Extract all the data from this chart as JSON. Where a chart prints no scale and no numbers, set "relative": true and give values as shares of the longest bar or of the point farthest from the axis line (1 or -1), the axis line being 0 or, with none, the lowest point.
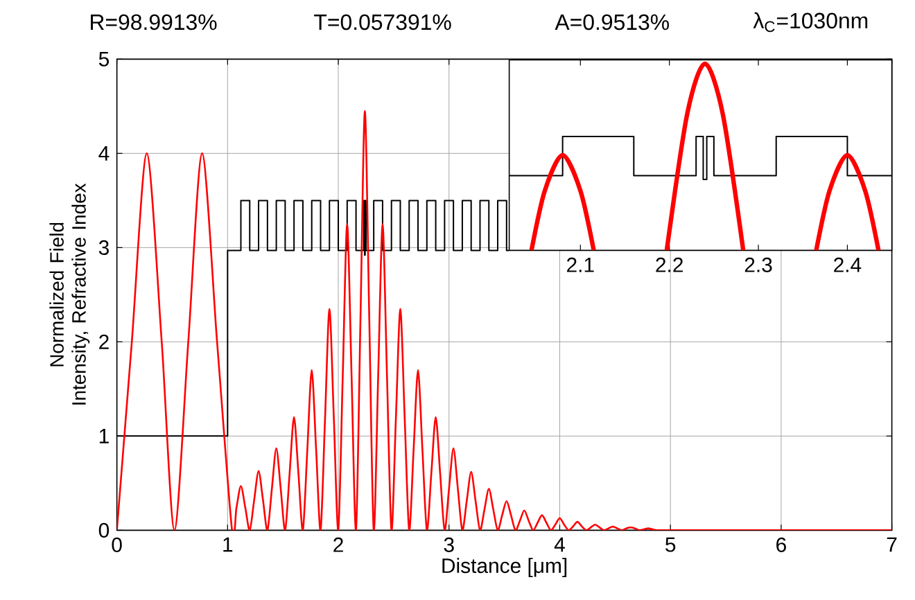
{
  "chart_data": [
    {
      "type": "line",
      "annotations": [
        "R=98.9913%",
        "T=0.057391%",
        "A=0.9513%",
        "λ$_{C}$=1030nm"
      ],
      "xlabel": "Distance [μm]",
      "ylabel": "Normalized Field Intensity, Refractive Index",
      "xlim": [
        0,
        7
      ],
      "ylim": [
        0,
        5
      ],
      "xticks": [
        0,
        1,
        2,
        3,
        4,
        5,
        6,
        7
      ],
      "yticks": [
        0,
        1,
        2,
        3,
        4,
        5
      ],
      "grid": true,
      "series": [
        {
          "type": "step",
          "color": "#000000",
          "x": [
            0,
            1.0,
            1.12,
            1.2,
            1.28,
            1.36,
            1.44,
            1.52,
            1.6,
            1.68,
            1.76,
            1.84,
            1.92,
            2.0,
            2.08,
            2.16,
            2.23,
            2.238,
            2.242,
            2.25,
            2.32,
            2.4,
            2.48,
            2.56,
            2.64,
            2.72,
            2.8,
            2.88,
            2.96,
            3.04,
            3.12,
            3.2,
            3.28,
            3.36,
            3.44,
            3.52,
            3.54
          ],
          "values": [
            1,
            2.97,
            3.5,
            2.97,
            3.5,
            2.97,
            3.5,
            2.97,
            3.5,
            2.97,
            3.5,
            2.97,
            3.5,
            2.97,
            3.5,
            2.97,
            3.5,
            2.92,
            3.5,
            2.97,
            3.5,
            2.97,
            3.5,
            2.97,
            3.5,
            2.97,
            3.5,
            2.97,
            3.5,
            2.97,
            3.5,
            2.97,
            3.5,
            2.97,
            3.5,
            2.97,
            2.97
          ]
        },
        {
          "color": "#ff0000",
          "x": [
            0,
            0.135,
            0.27,
            0.405,
            0.52,
            0.645,
            0.77,
            0.905,
            1.04,
            1.08,
            1.12,
            1.16,
            1.2,
            1.24,
            1.28,
            1.32,
            1.36,
            1.4,
            1.44,
            1.48,
            1.52,
            1.56,
            1.6,
            1.64,
            1.68,
            1.72,
            1.76,
            1.8,
            1.84,
            1.88,
            1.92,
            1.96,
            2.0,
            2.04,
            2.08,
            2.12,
            2.16,
            2.2,
            2.24,
            2.28,
            2.32,
            2.36,
            2.4,
            2.44,
            2.48,
            2.52,
            2.56,
            2.6,
            2.64,
            2.68,
            2.72,
            2.76,
            2.8,
            2.84,
            2.88,
            2.92,
            2.96,
            3.0,
            3.04,
            3.08,
            3.12,
            3.16,
            3.2,
            3.24,
            3.28,
            3.32,
            3.36,
            3.4,
            3.44,
            3.48,
            3.52,
            3.56,
            3.6,
            3.64,
            3.68,
            3.72,
            3.76,
            3.8,
            3.84,
            3.88,
            3.92,
            3.96,
            4.0,
            4.04,
            4.08,
            4.12,
            4.16,
            4.2,
            4.24,
            4.28,
            4.32,
            4.36,
            4.4,
            4.44,
            4.48,
            4.52,
            4.56,
            4.6,
            4.64,
            4.68,
            4.72,
            4.76,
            4.8,
            4.84,
            4.88,
            5.0,
            7.0
          ],
          "values": [
            0,
            2,
            4,
            2,
            0,
            2,
            4,
            2,
            0,
            0.24,
            0.47,
            0.24,
            0,
            0.32,
            0.63,
            0.32,
            0,
            0.44,
            0.87,
            0.44,
            0,
            0.6,
            1.2,
            0.6,
            0,
            0.85,
            1.7,
            0.85,
            0,
            1.18,
            2.35,
            1.18,
            0,
            1.63,
            3.25,
            1.63,
            0,
            2.23,
            4.45,
            2.23,
            0,
            1.63,
            3.25,
            1.63,
            0,
            1.18,
            2.35,
            1.18,
            0,
            0.85,
            1.7,
            0.85,
            0,
            0.6,
            1.2,
            0.6,
            0,
            0.44,
            0.87,
            0.44,
            0,
            0.31,
            0.62,
            0.31,
            0,
            0.22,
            0.44,
            0.22,
            0,
            0.16,
            0.31,
            0.16,
            0,
            0.1,
            0.21,
            0.1,
            0,
            0.08,
            0.16,
            0.08,
            0,
            0.06,
            0.13,
            0.06,
            0,
            0.04,
            0.09,
            0.04,
            0,
            0.03,
            0.06,
            0.03,
            0,
            0.02,
            0.04,
            0.02,
            0,
            0.02,
            0.03,
            0.02,
            0,
            0.01,
            0.02,
            0.01,
            0,
            0,
            0
          ]
        }
      ]
    },
    {
      "type": "line",
      "relative": true,
      "xlim": [
        2.02,
        2.45
      ],
      "xticks": [
        2.1,
        2.2,
        2.3,
        2.4
      ],
      "tick_labels": "x",
      "series": [
        {
          "type": "step",
          "color": "#000000",
          "x": [
            2.02,
            2.08,
            2.16,
            2.23,
            2.238,
            2.242,
            2.25,
            2.32,
            2.4,
            2.45
          ],
          "values": [
            0.4,
            0.61,
            0.4,
            0.61,
            0.38,
            0.61,
            0.4,
            0.61,
            0.4,
            0.4
          ]
        },
        {
          "color": "#ff0000",
          "x": [
            2.045,
            2.06,
            2.08,
            2.1,
            2.115,
            2.156,
            2.197,
            2.22,
            2.24,
            2.26,
            2.283,
            2.324,
            2.365,
            2.38,
            2.4,
            2.42,
            2.435
          ],
          "values": [
            0,
            0.32,
            0.51,
            0.32,
            0,
            null,
            0,
            0.73,
            1,
            0.73,
            0,
            null,
            0,
            0.32,
            0.51,
            0.32,
            0
          ]
        }
      ]
    }
  ]
}
